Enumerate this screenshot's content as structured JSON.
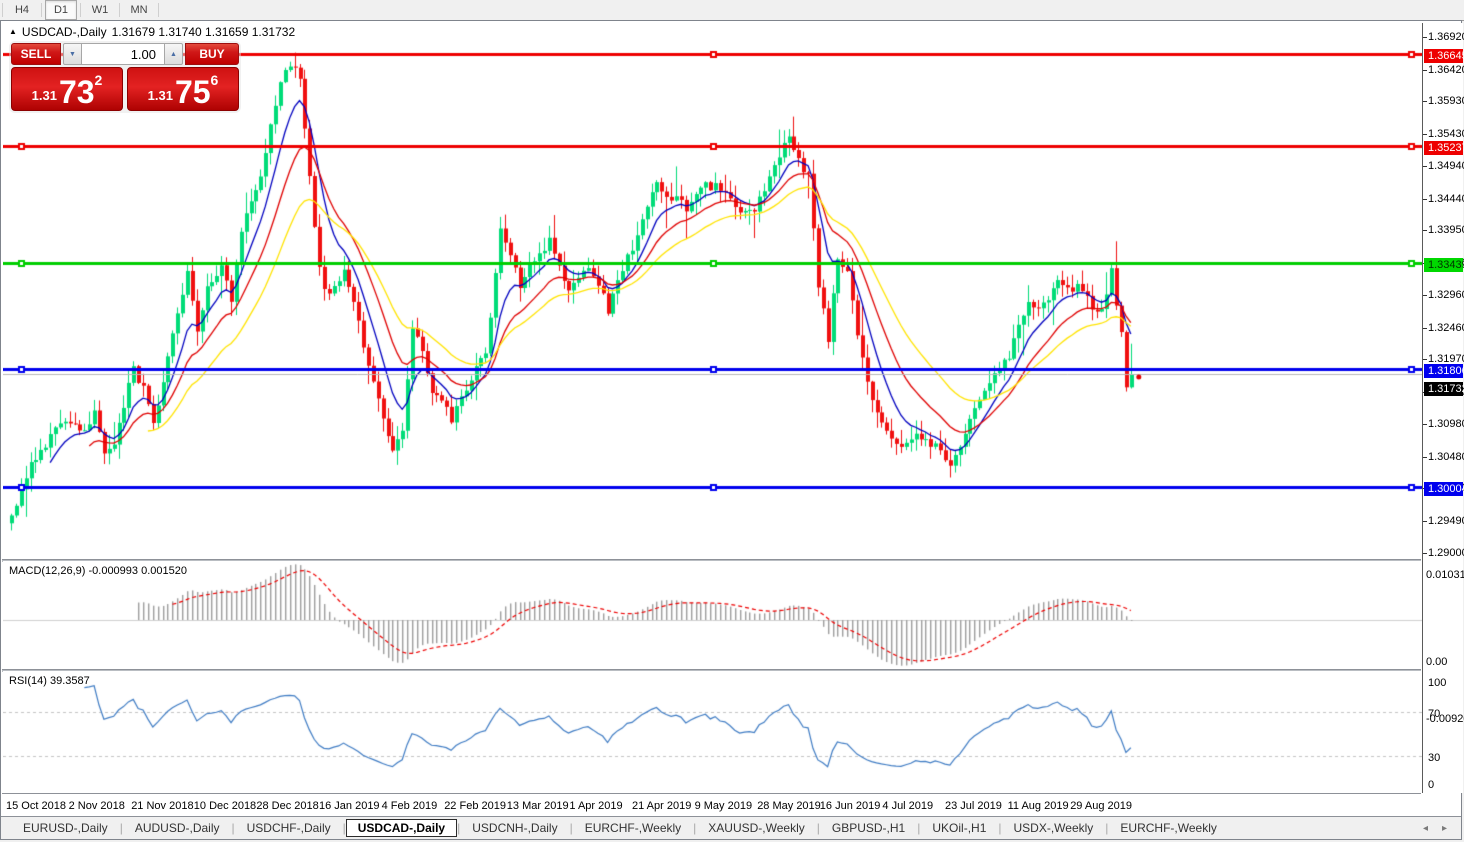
{
  "toolbar": {
    "timeframes": [
      {
        "label": "H4",
        "active": false
      },
      {
        "label": "D1",
        "active": true
      },
      {
        "label": "W1",
        "active": false
      },
      {
        "label": "MN",
        "active": false
      }
    ]
  },
  "chart_header": {
    "symbol_title": "USDCAD-,Daily",
    "quotes": "1.31679 1.31740 1.31659 1.31732",
    "collapse_icon": "▲"
  },
  "trade_panel": {
    "sell_label": "SELL",
    "buy_label": "BUY",
    "volume": "1.00",
    "spin_down_icon": "▼",
    "spin_up_icon": "▲",
    "sell_price": {
      "prefix": "1.31",
      "big": "73",
      "sup": "2"
    },
    "buy_price": {
      "prefix": "1.31",
      "big": "75",
      "sup": "6"
    }
  },
  "price_scale": {
    "ticks": [
      "1.36920",
      "1.36420",
      "1.35930",
      "1.35430",
      "1.34940",
      "1.34440",
      "1.33950",
      "1.33450",
      "1.32960",
      "1.32460",
      "1.31970",
      "1.31470",
      "1.30980",
      "1.30480",
      "1.29990",
      "1.29490",
      "1.29000"
    ]
  },
  "hlines": [
    {
      "label": "1.36645",
      "value": 1.36645,
      "color": "#ee0000",
      "label_bg": "#ee0000",
      "label_fg": "#ffffff"
    },
    {
      "label": "1.35237",
      "value": 1.35237,
      "color": "#ee0000",
      "label_bg": "#ee0000",
      "label_fg": "#ffffff"
    },
    {
      "label": "1.33439",
      "value": 1.33439,
      "color": "#00ce00",
      "label_bg": "#00d800",
      "label_fg": "#003300"
    },
    {
      "label": "1.31806",
      "value": 1.31806,
      "color": "#0000ee",
      "label_bg": "#0000ee",
      "label_fg": "#ffffff"
    },
    {
      "label": "1.30004",
      "value": 1.30004,
      "color": "#0000ee",
      "label_bg": "#0000ee",
      "label_fg": "#ffffff"
    }
  ],
  "current_price": {
    "label": "1.31732",
    "value": 1.31732,
    "line_color": "#b8b8b8",
    "label_bg": "#000000",
    "label_fg": "#ffffff"
  },
  "indicators": {
    "macd": {
      "name": "MACD(12,26,9)",
      "values": "-0.000993 0.001520",
      "scale_top": "0.010311",
      "scale_mid": "0.00",
      "scale_bottom": "-0.009203",
      "histogram_color": "#9e9e9e",
      "signal_color": "#ee0000"
    },
    "rsi": {
      "name": "RSI(14)",
      "value": "39.3587",
      "scale": [
        "100",
        "70",
        "30",
        "0"
      ],
      "levels": [
        70,
        30
      ],
      "line_color": "#3f7cc4"
    }
  },
  "time_axis": [
    "15 Oct 2018",
    "2 Nov 2018",
    "21 Nov 2018",
    "10 Dec 2018",
    "28 Dec 2018",
    "16 Jan 2019",
    "4 Feb 2019",
    "22 Feb 2019",
    "13 Mar 2019",
    "1 Apr 2019",
    "21 Apr 2019",
    "9 May 2019",
    "28 May 2019",
    "16 Jun 2019",
    "4 Jul 2019",
    "23 Jul 2019",
    "11 Aug 2019",
    "29 Aug 2019"
  ],
  "tabs": {
    "items": [
      "EURUSD-,Daily",
      "AUDUSD-,Daily",
      "USDCHF-,Daily",
      "USDCAD-,Daily",
      "USDCNH-,Daily",
      "EURCHF-,Weekly",
      "XAUUSD-,Weekly",
      "GBPUSD-,H1",
      "UKOil-,H1",
      "USDX-,Weekly",
      "EURCHF-,Weekly"
    ],
    "active_index": 3,
    "nav_left_icon": "◂",
    "nav_right_icon": "▸"
  },
  "chart_data": {
    "type": "candlestick",
    "symbol": "USDCAD",
    "timeframe": "Daily",
    "bars": 230,
    "y_range": [
      1.29,
      1.3692
    ],
    "visible_dates": [
      "15 Oct 2018",
      "29 Aug 2019"
    ],
    "bull_color": "#00dc78",
    "bear_color": "#f01010",
    "close_anchors": [
      [
        0,
        1.296
      ],
      [
        2,
        1.2995
      ],
      [
        4,
        1.304
      ],
      [
        8,
        1.3075
      ],
      [
        11,
        1.31
      ],
      [
        14,
        1.3085
      ],
      [
        17,
        1.311
      ],
      [
        19,
        1.3045
      ],
      [
        21,
        1.307
      ],
      [
        25,
        1.318
      ],
      [
        27,
        1.315
      ],
      [
        29,
        1.3105
      ],
      [
        31,
        1.316
      ],
      [
        33,
        1.323
      ],
      [
        36,
        1.333
      ],
      [
        38,
        1.3235
      ],
      [
        40,
        1.33
      ],
      [
        43,
        1.3345
      ],
      [
        45,
        1.329
      ],
      [
        47,
        1.339
      ],
      [
        49,
        1.344
      ],
      [
        51,
        1.348
      ],
      [
        53,
        1.356
      ],
      [
        55,
        1.3615
      ],
      [
        57,
        1.365
      ],
      [
        59,
        1.3625
      ],
      [
        61,
        1.348
      ],
      [
        63,
        1.333
      ],
      [
        65,
        1.329
      ],
      [
        68,
        1.333
      ],
      [
        70,
        1.329
      ],
      [
        72,
        1.322
      ],
      [
        74,
        1.316
      ],
      [
        76,
        1.3105
      ],
      [
        78,
        1.306
      ],
      [
        80,
        1.308
      ],
      [
        82,
        1.324
      ],
      [
        84,
        1.321
      ],
      [
        86,
        1.315
      ],
      [
        88,
        1.313
      ],
      [
        90,
        1.31
      ],
      [
        92,
        1.314
      ],
      [
        94,
        1.317
      ],
      [
        97,
        1.32
      ],
      [
        99,
        1.333
      ],
      [
        100,
        1.34
      ],
      [
        102,
        1.335
      ],
      [
        104,
        1.331
      ],
      [
        106,
        1.334
      ],
      [
        108,
        1.336
      ],
      [
        110,
        1.338
      ],
      [
        112,
        1.334
      ],
      [
        114,
        1.33
      ],
      [
        116,
        1.332
      ],
      [
        118,
        1.334
      ],
      [
        120,
        1.331
      ],
      [
        122,
        1.327
      ],
      [
        124,
        1.331
      ],
      [
        126,
        1.335
      ],
      [
        128,
        1.339
      ],
      [
        130,
        1.343
      ],
      [
        132,
        1.346
      ],
      [
        134,
        1.344
      ],
      [
        136,
        1.3445
      ],
      [
        138,
        1.343
      ],
      [
        140,
        1.345
      ],
      [
        142,
        1.346
      ],
      [
        144,
        1.3465
      ],
      [
        146,
        1.345
      ],
      [
        148,
        1.343
      ],
      [
        150,
        1.342
      ],
      [
        152,
        1.343
      ],
      [
        154,
        1.345
      ],
      [
        156,
        1.349
      ],
      [
        158,
        1.352
      ],
      [
        159,
        1.353
      ],
      [
        161,
        1.35
      ],
      [
        163,
        1.348
      ],
      [
        165,
        1.331
      ],
      [
        167,
        1.323
      ],
      [
        169,
        1.335
      ],
      [
        171,
        1.333
      ],
      [
        173,
        1.324
      ],
      [
        175,
        1.316
      ],
      [
        177,
        1.312
      ],
      [
        179,
        1.309
      ],
      [
        181,
        1.3065
      ],
      [
        183,
        1.306
      ],
      [
        185,
        1.308
      ],
      [
        187,
        1.307
      ],
      [
        189,
        1.306
      ],
      [
        191,
        1.304
      ],
      [
        192,
        1.303
      ],
      [
        194,
        1.306
      ],
      [
        196,
        1.311
      ],
      [
        198,
        1.314
      ],
      [
        200,
        1.316
      ],
      [
        202,
        1.318
      ],
      [
        204,
        1.32
      ],
      [
        206,
        1.325
      ],
      [
        208,
        1.328
      ],
      [
        210,
        1.327
      ],
      [
        212,
        1.329
      ],
      [
        214,
        1.331
      ],
      [
        216,
        1.33
      ],
      [
        218,
        1.331
      ],
      [
        220,
        1.329
      ],
      [
        222,
        1.327
      ],
      [
        224,
        1.329
      ],
      [
        225,
        1.334
      ],
      [
        226,
        1.328
      ],
      [
        227,
        1.323
      ],
      [
        228,
        1.315
      ],
      [
        229,
        1.31732
      ]
    ],
    "last_close": 1.31732,
    "moving_averages": [
      {
        "period": 8,
        "color": "#0000c0"
      },
      {
        "period": 16,
        "color": "#e00000"
      },
      {
        "period": 28,
        "color": "#ffe400"
      }
    ]
  }
}
